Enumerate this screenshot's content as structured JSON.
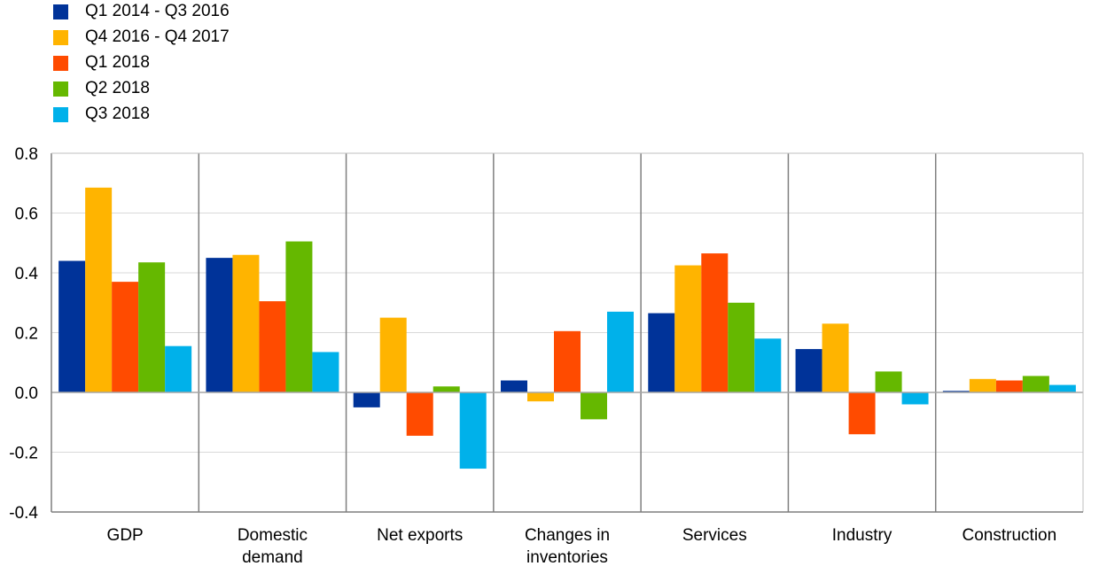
{
  "chart_data": {
    "type": "bar",
    "title": "",
    "xlabel": "",
    "ylabel": "",
    "ylim": [
      -0.4,
      0.8
    ],
    "yticks": [
      "0.8",
      "0.6",
      "0.4",
      "0.2",
      "0.0",
      "-0.2",
      "-0.4"
    ],
    "ytick_values": [
      0.8,
      0.6,
      0.4,
      0.2,
      0.0,
      -0.2,
      -0.4
    ],
    "grid": true,
    "legend_position": "top-left",
    "categories": [
      [
        "GDP"
      ],
      [
        "Domestic",
        "demand"
      ],
      [
        "Net exports"
      ],
      [
        "Changes in",
        "inventories"
      ],
      [
        "Services"
      ],
      [
        "Industry"
      ],
      [
        "Construction"
      ]
    ],
    "series": [
      {
        "name": "Q1 2014 - Q3 2016",
        "color": "#003399",
        "values": [
          0.44,
          0.45,
          -0.05,
          0.04,
          0.265,
          0.145,
          0.005
        ]
      },
      {
        "name": "Q4 2016 - Q4 2017",
        "color": "#ffb400",
        "values": [
          0.685,
          0.46,
          0.25,
          -0.03,
          0.425,
          0.23,
          0.045
        ]
      },
      {
        "name": "Q1 2018",
        "color": "#ff4b00",
        "values": [
          0.37,
          0.305,
          -0.145,
          0.205,
          0.465,
          -0.14,
          0.04
        ]
      },
      {
        "name": "Q2 2018",
        "color": "#65b800",
        "values": [
          0.435,
          0.505,
          0.02,
          -0.09,
          0.3,
          0.07,
          0.055
        ]
      },
      {
        "name": "Q3 2018",
        "color": "#00b1ea",
        "values": [
          0.155,
          0.135,
          -0.255,
          0.27,
          0.18,
          -0.04,
          0.025
        ]
      }
    ]
  }
}
